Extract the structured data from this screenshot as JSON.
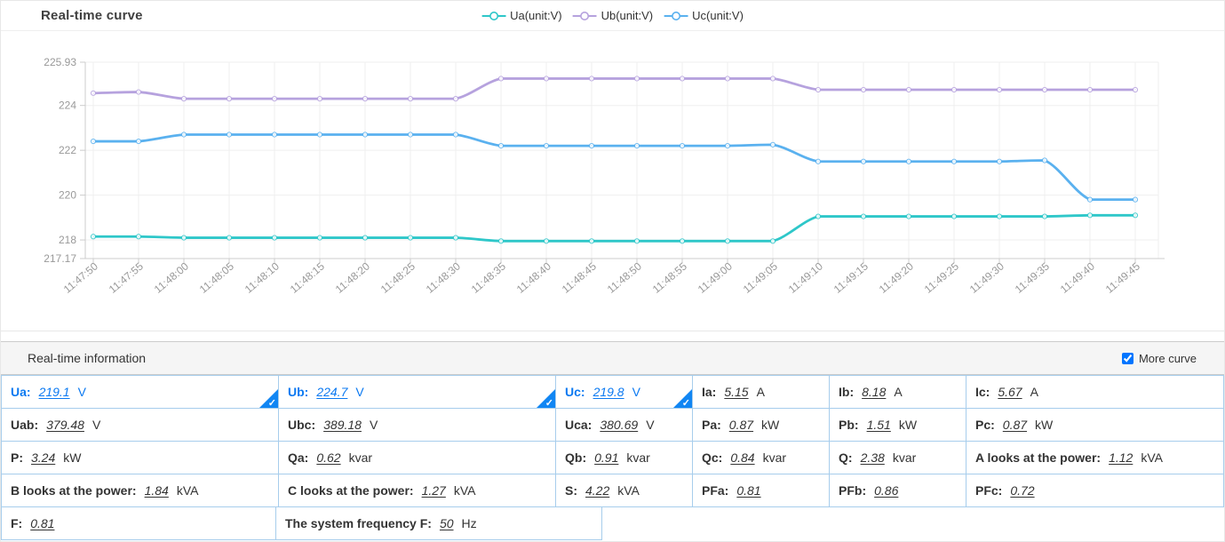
{
  "chart_panel": {
    "title": "Real-time curve"
  },
  "chart_data": {
    "type": "line",
    "x": [
      "11:47:50",
      "11:47:55",
      "11:48:00",
      "11:48:05",
      "11:48:10",
      "11:48:15",
      "11:48:20",
      "11:48:25",
      "11:48:30",
      "11:48:35",
      "11:48:40",
      "11:48:45",
      "11:48:50",
      "11:48:55",
      "11:49:00",
      "11:49:05",
      "11:49:10",
      "11:49:15",
      "11:49:20",
      "11:49:25",
      "11:49:30",
      "11:49:35",
      "11:49:40",
      "11:49:45"
    ],
    "series": [
      {
        "name": "Ua(unit:V)",
        "color": "#2ec7c9",
        "values": [
          218.15,
          218.15,
          218.1,
          218.1,
          218.1,
          218.1,
          218.1,
          218.1,
          218.1,
          217.95,
          217.95,
          217.95,
          217.95,
          217.95,
          217.95,
          217.95,
          219.05,
          219.05,
          219.05,
          219.05,
          219.05,
          219.05,
          219.1,
          219.1
        ]
      },
      {
        "name": "Ub(unit:V)",
        "color": "#b6a2de",
        "values": [
          224.55,
          224.6,
          224.3,
          224.3,
          224.3,
          224.3,
          224.3,
          224.3,
          224.3,
          225.2,
          225.2,
          225.2,
          225.2,
          225.2,
          225.2,
          225.2,
          224.7,
          224.7,
          224.7,
          224.7,
          224.7,
          224.7,
          224.7,
          224.7
        ]
      },
      {
        "name": "Uc(unit:V)",
        "color": "#5ab1ef",
        "values": [
          222.4,
          222.4,
          222.7,
          222.7,
          222.7,
          222.7,
          222.7,
          222.7,
          222.7,
          222.2,
          222.2,
          222.2,
          222.2,
          222.2,
          222.2,
          222.25,
          221.5,
          221.5,
          221.5,
          221.5,
          221.5,
          221.55,
          219.8,
          219.8
        ]
      }
    ],
    "ylim": [
      217.17,
      225.93
    ],
    "y_ticks": [
      217.17,
      218,
      220,
      222,
      224,
      225.93
    ],
    "y_tick_labels": [
      "217.17",
      "218",
      "220",
      "222",
      "224",
      "225.93"
    ],
    "x_label_rotate": 40,
    "grid": true,
    "legend_position": "top-center",
    "title": "Real-time curve",
    "xlabel": "",
    "ylabel": ""
  },
  "info_panel": {
    "header": "Real-time information",
    "more_curve_label": "More curve",
    "more_curve_checked": true,
    "rows": [
      {
        "cells": [
          {
            "label": "Ua:",
            "value": "219.1",
            "unit": "V",
            "highlight": true,
            "checked": true
          },
          {
            "label": "Ub:",
            "value": "224.7",
            "unit": "V",
            "highlight": true,
            "checked": true
          },
          {
            "label": "Uc:",
            "value": "219.8",
            "unit": "V",
            "highlight": true,
            "checked": true
          },
          {
            "label": "Ia:",
            "value": "5.15",
            "unit": "A"
          },
          {
            "label": "Ib:",
            "value": "8.18",
            "unit": "A"
          },
          {
            "label": "Ic:",
            "value": "5.67",
            "unit": "A"
          }
        ]
      },
      {
        "cells": [
          {
            "label": "Uab:",
            "value": "379.48",
            "unit": "V"
          },
          {
            "label": "Ubc:",
            "value": "389.18",
            "unit": "V"
          },
          {
            "label": "Uca:",
            "value": "380.69",
            "unit": "V"
          },
          {
            "label": "Pa:",
            "value": "0.87",
            "unit": "kW"
          },
          {
            "label": "Pb:",
            "value": "1.51",
            "unit": "kW"
          },
          {
            "label": "Pc:",
            "value": "0.87",
            "unit": "kW"
          }
        ]
      },
      {
        "cells": [
          {
            "label": "P:",
            "value": "3.24",
            "unit": "kW"
          },
          {
            "label": "Qa:",
            "value": "0.62",
            "unit": "kvar"
          },
          {
            "label": "Qb:",
            "value": "0.91",
            "unit": "kvar"
          },
          {
            "label": "Qc:",
            "value": "0.84",
            "unit": "kvar"
          },
          {
            "label": "Q:",
            "value": "2.38",
            "unit": "kvar"
          },
          {
            "label": "A looks at the power:",
            "value": "1.12",
            "unit": "kVA"
          }
        ]
      },
      {
        "cells": [
          {
            "label": "B looks at the power:",
            "value": "1.84",
            "unit": "kVA"
          },
          {
            "label": "C looks at the power:",
            "value": "1.27",
            "unit": "kVA"
          },
          {
            "label": "S:",
            "value": "4.22",
            "unit": "kVA"
          },
          {
            "label": "PFa:",
            "value": "0.81",
            "unit": ""
          },
          {
            "label": "PFb:",
            "value": "0.86",
            "unit": ""
          },
          {
            "label": "PFc:",
            "value": "0.72",
            "unit": ""
          }
        ]
      },
      {
        "cells": [
          {
            "label": "F:",
            "value": "0.81",
            "unit": ""
          },
          {
            "label": "The system frequency F:",
            "value": "50",
            "unit": "Hz"
          }
        ]
      }
    ]
  },
  "colors": {
    "accent_blue": "#0b79f1",
    "table_border": "#a7cdec",
    "axis_label": "#999999",
    "grid_line": "#efefef",
    "axis_line": "#cccccc"
  }
}
